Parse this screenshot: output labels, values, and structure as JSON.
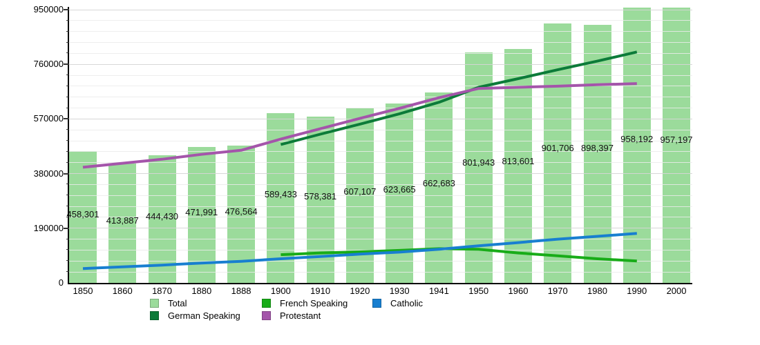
{
  "chart_data": {
    "type": "bar",
    "title": "",
    "xlabel": "",
    "ylabel": "",
    "categories": [
      "1850",
      "1860",
      "1870",
      "1880",
      "1888",
      "1900",
      "1910",
      "1920",
      "1930",
      "1941",
      "1950",
      "1960",
      "1970",
      "1980",
      "1990",
      "2000"
    ],
    "bars": {
      "name": "Total",
      "color": "#9bdb9b",
      "values": [
        458301,
        413887,
        444430,
        471991,
        476564,
        589433,
        578381,
        607107,
        623665,
        662683,
        801943,
        813601,
        901706,
        898397,
        958192,
        957197
      ],
      "value_labels": [
        "458,301",
        "413,887",
        "444,430",
        "471,991",
        "476,564",
        "589,433",
        "578,381",
        "607,107",
        "623,665",
        "662,683",
        "801,943",
        "813,601",
        "901,706",
        "898,397",
        "958,192",
        "957,197"
      ]
    },
    "series": [
      {
        "name": "German Speaking",
        "color": "#0c7b39",
        "start_index": 5,
        "values": [
          481000,
          517000,
          552000,
          588000,
          628000,
          680000,
          710000,
          741000,
          771000,
          803000
        ]
      },
      {
        "name": "Protestant",
        "color": "#a455aa",
        "start_index": 0,
        "values": [
          402000,
          416000,
          430000,
          447000,
          461000,
          500000,
          536000,
          572000,
          607000,
          644000,
          676000,
          680000,
          684000,
          689000,
          693000
        ]
      },
      {
        "name": "French Speaking",
        "color": "#18ac18",
        "start_index": 5,
        "values": [
          98000,
          104000,
          108000,
          113000,
          119000,
          117000,
          104000,
          94000,
          84000,
          76000
        ]
      },
      {
        "name": "Catholic",
        "color": "#187fd0",
        "start_index": 0,
        "values": [
          50000,
          56000,
          62000,
          69000,
          75000,
          84000,
          92000,
          100000,
          107000,
          117000,
          129000,
          140000,
          152000,
          162000,
          172000
        ]
      }
    ],
    "y_axis": {
      "min": 0,
      "max": 950000,
      "major_step": 190000,
      "minor_step": 38000,
      "tick_labels": [
        "0",
        "190000",
        "380000",
        "570000",
        "760000",
        "950000"
      ]
    },
    "grid": "horizontal",
    "legend": {
      "position": "bottom",
      "items": [
        {
          "label": "Total",
          "color": "#9bdb9b",
          "row": 0,
          "col": 0
        },
        {
          "label": "French Speaking",
          "color": "#18ac18",
          "row": 0,
          "col": 1
        },
        {
          "label": "Catholic",
          "color": "#187fd0",
          "row": 0,
          "col": 2
        },
        {
          "label": "German Speaking",
          "color": "#0c7b39",
          "row": 1,
          "col": 0
        },
        {
          "label": "Protestant",
          "color": "#a455aa",
          "row": 1,
          "col": 1
        }
      ]
    }
  }
}
